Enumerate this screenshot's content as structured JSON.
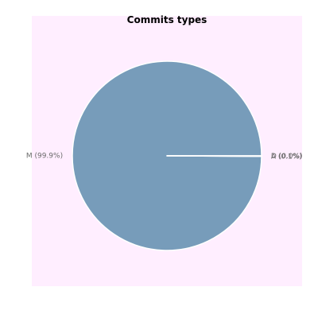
{
  "chart_data": {
    "type": "pie",
    "title": "Commits types",
    "slices": [
      {
        "label": "M",
        "percent_label": "M (99.9%)",
        "value": 99.9,
        "color": "#779cba"
      },
      {
        "label": "A",
        "percent_label": "A (0.1%)",
        "value": 0.05,
        "color": "#779cba"
      },
      {
        "label": "D",
        "percent_label": "D (0.0%)",
        "value": 0.05,
        "color": "#779cba"
      }
    ],
    "background_color": "#ffeeff",
    "edge_color": "#ffffff"
  }
}
